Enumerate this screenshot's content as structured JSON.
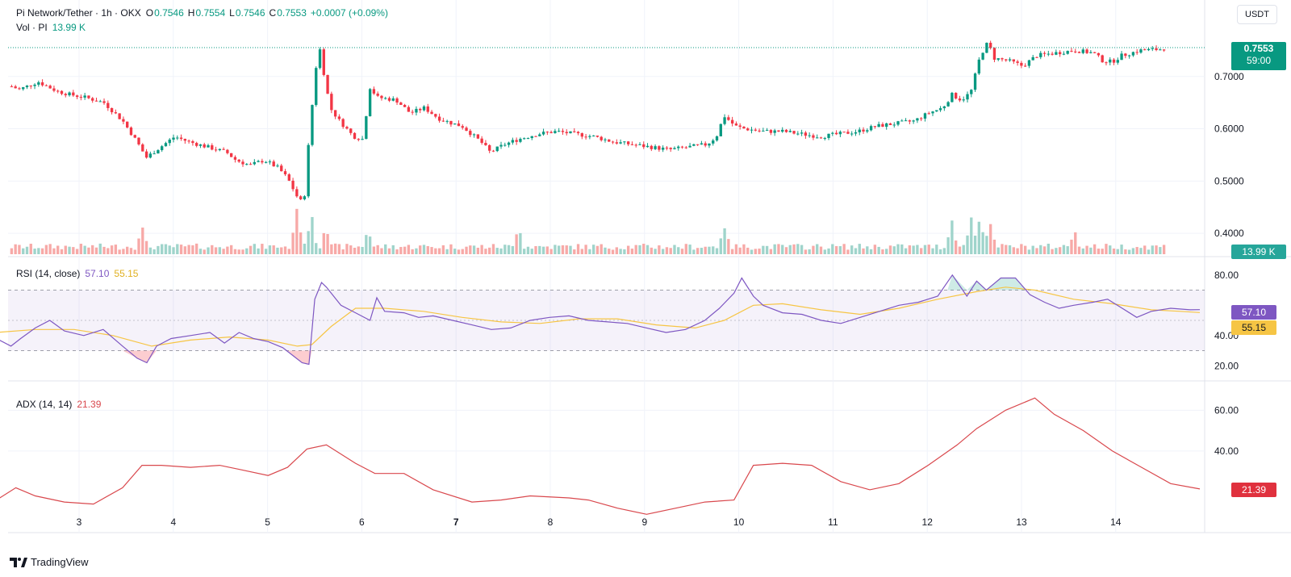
{
  "header": {
    "symbol": "Pi Network/Tether · 1h · OKX",
    "open_label": "O",
    "open": "0.7546",
    "high_label": "H",
    "high": "0.7554",
    "low_label": "L",
    "low": "0.7546",
    "close_label": "C",
    "close": "0.7553",
    "change": "+0.0007 (+0.09%)",
    "volume_label": "Vol · PI",
    "volume": "13.99 K"
  },
  "currency_button": "USDT",
  "price_tag": {
    "price": "0.7553",
    "countdown": "59:00"
  },
  "volume_tag": "13.99 K",
  "rsi": {
    "label": "RSI (14, close)",
    "rsi_value": "57.10",
    "ma_value": "55.15"
  },
  "adx": {
    "label": "ADX (14, 14)",
    "value": "21.39"
  },
  "branding": {
    "name": "TradingView"
  },
  "colors": {
    "up": "#089981",
    "down": "#f23645",
    "up_vol": "#9fd4cb",
    "down_vol": "#f7a9a7",
    "rsi_line": "#7e57c2",
    "rsi_ma": "#f6c544",
    "adx_line": "#d9484d"
  },
  "chart_data": [
    {
      "type": "candlestick",
      "title": "Pi Network/Tether · 1h · OKX",
      "x_ticks": [
        "3",
        "4",
        "5",
        "6",
        "7",
        "8",
        "9",
        "10",
        "11",
        "12",
        "13",
        "14"
      ],
      "y_ticks": [
        "0.7000",
        "0.6000",
        "0.5000",
        "0.4000"
      ],
      "ylim": [
        0.36,
        0.8
      ],
      "close_path": [
        [
          2.1,
          0.69
        ],
        [
          2.3,
          0.675
        ],
        [
          2.5,
          0.69
        ],
        [
          2.7,
          0.672
        ],
        [
          2.85,
          0.665
        ],
        [
          3.0,
          0.66
        ],
        [
          3.2,
          0.65
        ],
        [
          3.4,
          0.615
        ],
        [
          3.55,
          0.575
        ],
        [
          3.65,
          0.545
        ],
        [
          3.8,
          0.565
        ],
        [
          3.95,
          0.585
        ],
        [
          4.1,
          0.575
        ],
        [
          4.3,
          0.565
        ],
        [
          4.5,
          0.555
        ],
        [
          4.6,
          0.54
        ],
        [
          4.75,
          0.53
        ],
        [
          4.9,
          0.54
        ],
        [
          5.05,
          0.525
        ],
        [
          5.15,
          0.505
        ],
        [
          5.25,
          0.47
        ],
        [
          5.32,
          0.455
        ],
        [
          5.38,
          0.59
        ],
        [
          5.44,
          0.7
        ],
        [
          5.48,
          0.765
        ],
        [
          5.52,
          0.72
        ],
        [
          5.6,
          0.64
        ],
        [
          5.7,
          0.615
        ],
        [
          5.85,
          0.585
        ],
        [
          5.95,
          0.58
        ],
        [
          6.02,
          0.68
        ],
        [
          6.1,
          0.66
        ],
        [
          6.3,
          0.655
        ],
        [
          6.45,
          0.63
        ],
        [
          6.6,
          0.64
        ],
        [
          6.75,
          0.62
        ],
        [
          6.9,
          0.61
        ],
        [
          7.0,
          0.605
        ],
        [
          7.1,
          0.59
        ],
        [
          7.2,
          0.575
        ],
        [
          7.3,
          0.555
        ],
        [
          7.45,
          0.57
        ],
        [
          7.6,
          0.58
        ],
        [
          7.8,
          0.59
        ],
        [
          8.0,
          0.595
        ],
        [
          8.2,
          0.59
        ],
        [
          8.4,
          0.585
        ],
        [
          8.6,
          0.575
        ],
        [
          8.8,
          0.57
        ],
        [
          9.0,
          0.565
        ],
        [
          9.2,
          0.56
        ],
        [
          9.4,
          0.565
        ],
        [
          9.6,
          0.57
        ],
        [
          9.7,
          0.585
        ],
        [
          9.78,
          0.625
        ],
        [
          9.9,
          0.605
        ],
        [
          10.0,
          0.6
        ],
        [
          10.2,
          0.595
        ],
        [
          10.4,
          0.595
        ],
        [
          10.6,
          0.59
        ],
        [
          10.8,
          0.585
        ],
        [
          11.0,
          0.59
        ],
        [
          11.2,
          0.595
        ],
        [
          11.4,
          0.605
        ],
        [
          11.6,
          0.61
        ],
        [
          11.8,
          0.615
        ],
        [
          11.95,
          0.63
        ],
        [
          12.1,
          0.64
        ],
        [
          12.2,
          0.665
        ],
        [
          12.3,
          0.655
        ],
        [
          12.4,
          0.67
        ],
        [
          12.5,
          0.74
        ],
        [
          12.58,
          0.765
        ],
        [
          12.65,
          0.735
        ],
        [
          12.8,
          0.73
        ],
        [
          12.95,
          0.72
        ],
        [
          13.1,
          0.74
        ],
        [
          13.3,
          0.745
        ],
        [
          13.5,
          0.75
        ],
        [
          13.7,
          0.745
        ],
        [
          13.8,
          0.73
        ],
        [
          13.9,
          0.728
        ],
        [
          14.0,
          0.74
        ],
        [
          14.2,
          0.75
        ],
        [
          14.4,
          0.752
        ],
        [
          14.5,
          0.7553
        ]
      ]
    },
    {
      "type": "line",
      "title": "RSI (14, close)",
      "y_ticks": [
        "80.00",
        "40.00",
        "20.00"
      ],
      "ylim": [
        10,
        90
      ],
      "bands": [
        30,
        50,
        70
      ],
      "series": [
        {
          "name": "RSI (14, close)",
          "points": [
            [
              2.1,
              38
            ],
            [
              2.25,
              33
            ],
            [
              2.35,
              38
            ],
            [
              2.5,
              45
            ],
            [
              2.65,
              50
            ],
            [
              2.8,
              43
            ],
            [
              3.0,
              40
            ],
            [
              3.2,
              44
            ],
            [
              3.4,
              33
            ],
            [
              3.55,
              25
            ],
            [
              3.65,
              22
            ],
            [
              3.75,
              33
            ],
            [
              3.9,
              38
            ],
            [
              4.1,
              40
            ],
            [
              4.3,
              42
            ],
            [
              4.45,
              35
            ],
            [
              4.6,
              42
            ],
            [
              4.75,
              38
            ],
            [
              4.9,
              36
            ],
            [
              5.05,
              32
            ],
            [
              5.15,
              27
            ],
            [
              5.25,
              22
            ],
            [
              5.32,
              21
            ],
            [
              5.38,
              64
            ],
            [
              5.45,
              75
            ],
            [
              5.5,
              72
            ],
            [
              5.65,
              60
            ],
            [
              5.8,
              55
            ],
            [
              5.95,
              50
            ],
            [
              6.02,
              65
            ],
            [
              6.1,
              56
            ],
            [
              6.3,
              55
            ],
            [
              6.45,
              52
            ],
            [
              6.6,
              53
            ],
            [
              6.8,
              50
            ],
            [
              7.0,
              47
            ],
            [
              7.2,
              44
            ],
            [
              7.4,
              45
            ],
            [
              7.6,
              50
            ],
            [
              7.8,
              52
            ],
            [
              8.0,
              53
            ],
            [
              8.2,
              50
            ],
            [
              8.4,
              49
            ],
            [
              8.6,
              48
            ],
            [
              8.8,
              45
            ],
            [
              9.0,
              42
            ],
            [
              9.2,
              44
            ],
            [
              9.4,
              50
            ],
            [
              9.55,
              58
            ],
            [
              9.7,
              68
            ],
            [
              9.78,
              78
            ],
            [
              9.9,
              66
            ],
            [
              10.0,
              60
            ],
            [
              10.2,
              55
            ],
            [
              10.4,
              54
            ],
            [
              10.6,
              50
            ],
            [
              10.8,
              48
            ],
            [
              11.0,
              52
            ],
            [
              11.2,
              56
            ],
            [
              11.4,
              60
            ],
            [
              11.6,
              62
            ],
            [
              11.8,
              66
            ],
            [
              11.95,
              80
            ],
            [
              12.1,
              66
            ],
            [
              12.2,
              76
            ],
            [
              12.3,
              70
            ],
            [
              12.45,
              78
            ],
            [
              12.6,
              78
            ],
            [
              12.75,
              67
            ],
            [
              12.9,
              62
            ],
            [
              13.05,
              58
            ],
            [
              13.2,
              60
            ],
            [
              13.4,
              62
            ],
            [
              13.55,
              64
            ],
            [
              13.7,
              58
            ],
            [
              13.85,
              52
            ],
            [
              14.0,
              56
            ],
            [
              14.2,
              58
            ],
            [
              14.4,
              57
            ],
            [
              14.5,
              57.1
            ]
          ]
        },
        {
          "name": "RSI-based MA",
          "points": [
            [
              2.1,
              42
            ],
            [
              2.5,
              44
            ],
            [
              2.9,
              44
            ],
            [
              3.3,
              40
            ],
            [
              3.7,
              33
            ],
            [
              4.1,
              37
            ],
            [
              4.5,
              39
            ],
            [
              4.9,
              37
            ],
            [
              5.2,
              33
            ],
            [
              5.35,
              34
            ],
            [
              5.55,
              46
            ],
            [
              5.8,
              58
            ],
            [
              6.1,
              58
            ],
            [
              6.5,
              56
            ],
            [
              6.9,
              52
            ],
            [
              7.3,
              49
            ],
            [
              7.7,
              48
            ],
            [
              8.1,
              51
            ],
            [
              8.5,
              51
            ],
            [
              8.9,
              47
            ],
            [
              9.3,
              45
            ],
            [
              9.6,
              50
            ],
            [
              9.9,
              60
            ],
            [
              10.2,
              61
            ],
            [
              10.6,
              57
            ],
            [
              11.0,
              54
            ],
            [
              11.4,
              58
            ],
            [
              11.8,
              64
            ],
            [
              12.2,
              69
            ],
            [
              12.5,
              72
            ],
            [
              12.8,
              70
            ],
            [
              13.2,
              64
            ],
            [
              13.6,
              61
            ],
            [
              14.0,
              57
            ],
            [
              14.3,
              56
            ],
            [
              14.5,
              55.15
            ]
          ]
        }
      ]
    },
    {
      "type": "line",
      "title": "ADX (14, 14)",
      "y_ticks": [
        "60.00",
        "40.00"
      ],
      "ylim": [
        0,
        72
      ],
      "series": [
        {
          "name": "ADX (14, 14)",
          "points": [
            [
              2.1,
              16
            ],
            [
              2.3,
              22
            ],
            [
              2.5,
              18
            ],
            [
              2.8,
              15
            ],
            [
              3.1,
              14
            ],
            [
              3.4,
              22
            ],
            [
              3.6,
              33
            ],
            [
              3.8,
              33
            ],
            [
              4.1,
              32
            ],
            [
              4.4,
              33
            ],
            [
              4.6,
              31
            ],
            [
              4.9,
              28
            ],
            [
              5.1,
              32
            ],
            [
              5.3,
              41
            ],
            [
              5.5,
              43
            ],
            [
              5.8,
              34
            ],
            [
              6.0,
              29
            ],
            [
              6.3,
              29
            ],
            [
              6.6,
              21
            ],
            [
              7.0,
              15
            ],
            [
              7.3,
              16
            ],
            [
              7.6,
              18
            ],
            [
              8.0,
              17
            ],
            [
              8.2,
              16
            ],
            [
              8.5,
              12
            ],
            [
              8.8,
              9
            ],
            [
              9.1,
              12
            ],
            [
              9.4,
              15
            ],
            [
              9.7,
              16
            ],
            [
              9.9,
              33
            ],
            [
              10.2,
              34
            ],
            [
              10.5,
              33
            ],
            [
              10.8,
              25
            ],
            [
              11.1,
              21
            ],
            [
              11.4,
              24
            ],
            [
              11.7,
              33
            ],
            [
              12.0,
              43
            ],
            [
              12.2,
              51
            ],
            [
              12.5,
              60
            ],
            [
              12.8,
              66
            ],
            [
              13.0,
              58
            ],
            [
              13.3,
              50
            ],
            [
              13.6,
              40
            ],
            [
              13.9,
              32
            ],
            [
              14.2,
              24
            ],
            [
              14.5,
              21.39
            ]
          ]
        }
      ]
    }
  ]
}
